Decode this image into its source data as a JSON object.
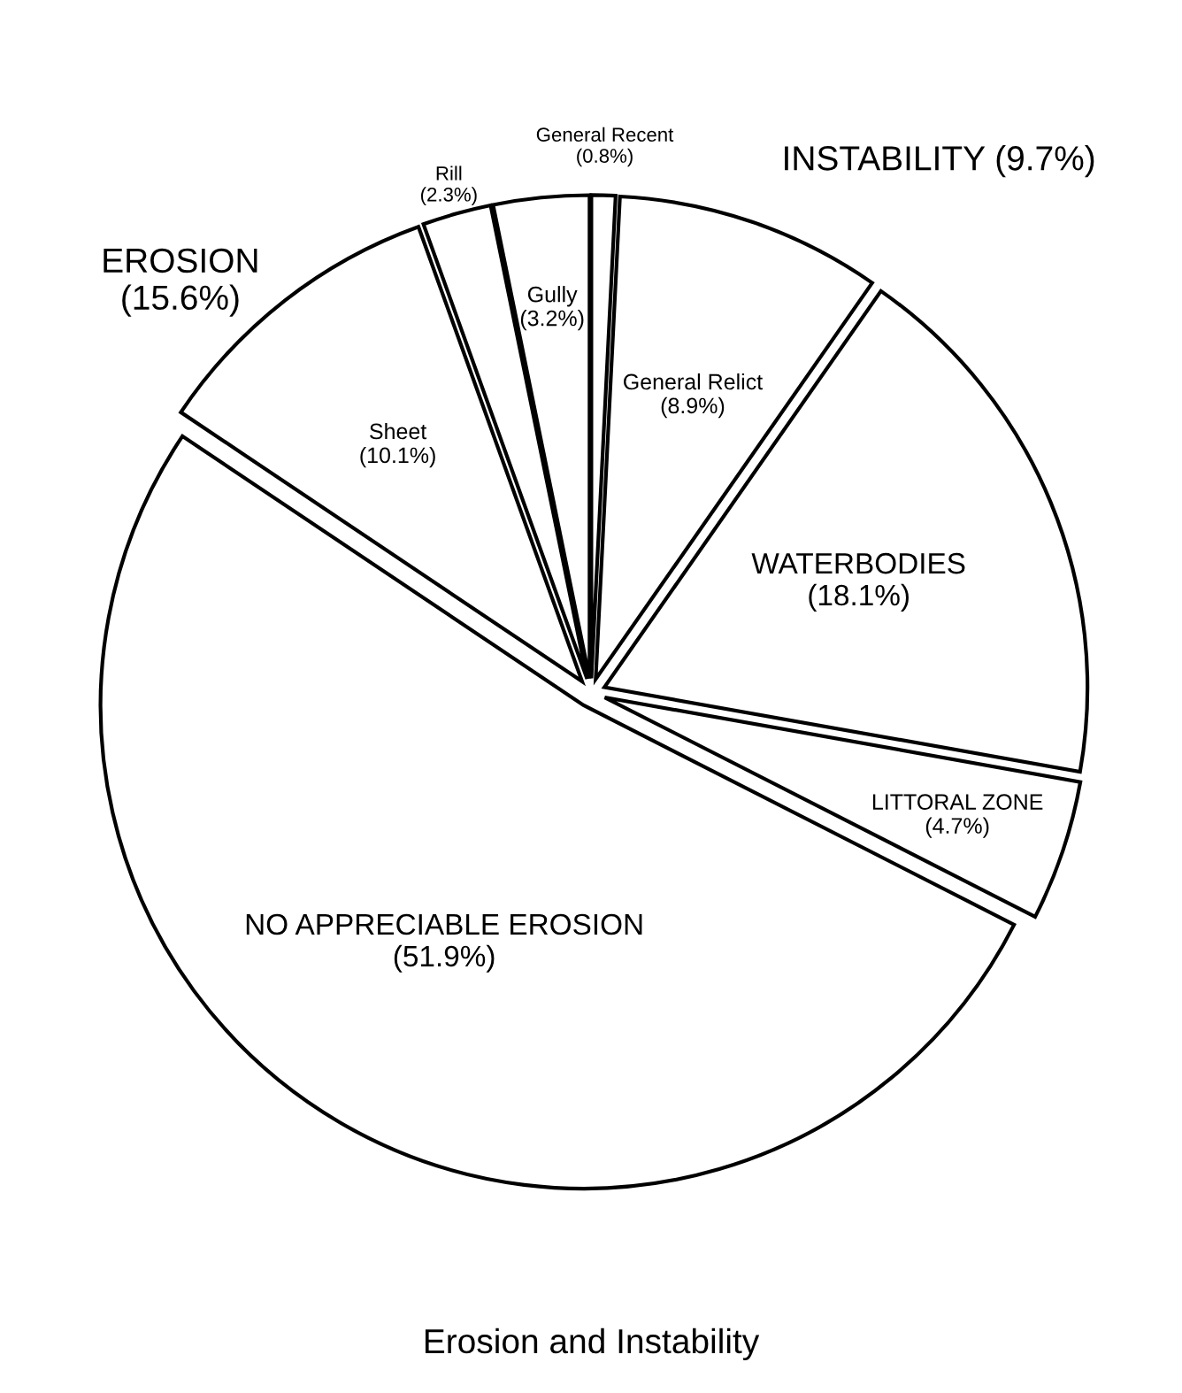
{
  "chart_data": {
    "type": "pie",
    "title": "Erosion and Instability",
    "categories": [
      "General Recent",
      "General Relict",
      "WATERBODIES",
      "LITTORAL ZONE",
      "NO APPRECIABLE EROSION",
      "Sheet",
      "Rill",
      "Gully"
    ],
    "values": [
      0.8,
      8.9,
      18.1,
      4.7,
      51.9,
      10.1,
      2.3,
      3.2
    ],
    "value_labels": [
      "(0.8%)",
      "(8.9%)",
      "(18.1%)",
      "(4.7%)",
      "(51.9%)",
      "(10.1%)",
      "(2.3%)",
      "(3.2%)"
    ],
    "colors": [
      "#ffffff",
      "#ffffff",
      "#ffffff",
      "#ffffff",
      "#ffffff",
      "#ffffff",
      "#ffffff",
      "#ffffff"
    ],
    "annotations": [
      "INSTABILITY (9.7%)",
      "EROSION\n(15.6%)"
    ]
  }
}
